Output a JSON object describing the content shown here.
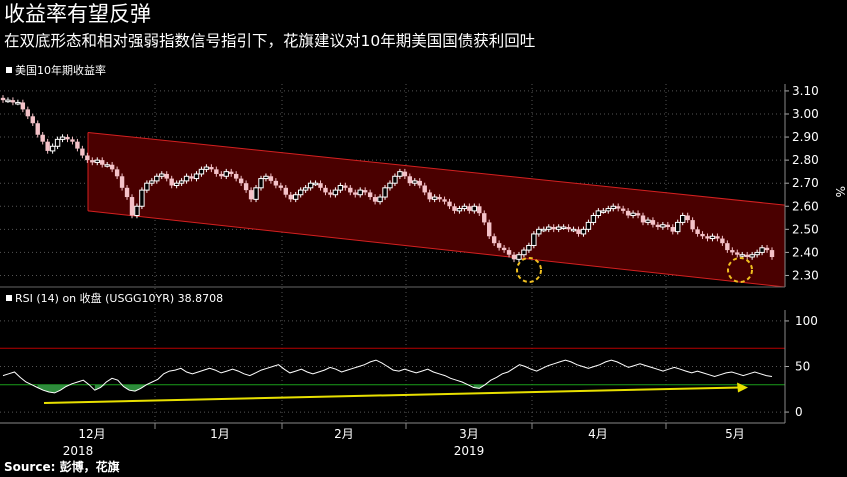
{
  "title": "收益率有望反弹",
  "subtitle": "在双底形态和相对强弱指数信号指引下，花旗建议对10年期美国国债获利回吐",
  "source": "Source: 彭博，花旗",
  "colors": {
    "background": "#000000",
    "channel_fill": "#4a0000",
    "channel_line": "#d42020",
    "candle_up": "#ffffff",
    "candle_down": "#f4c2c8",
    "rsi_line": "#ffffff",
    "rsi_oversold_fill": "#2e8b3c",
    "rsi_30_line": "#1a9e1a",
    "rsi_70_line": "#b80000",
    "trend_arrow": "#e8e000",
    "double_bottom_circle": "#f0c020"
  },
  "chart_data": [
    {
      "type": "candlestick",
      "title": "美国10年期收益率",
      "ylabel": "%",
      "ylim": [
        2.25,
        3.13
      ],
      "yticks": [
        2.3,
        2.4,
        2.5,
        2.6,
        2.7,
        2.8,
        2.9,
        3.0,
        3.1
      ],
      "ytick_labels": [
        "2.30",
        "2.40",
        "2.50",
        "2.60",
        "2.70",
        "2.80",
        "2.90",
        "3.00",
        "3.10"
      ],
      "x_month_labels": [
        "12月",
        "1月",
        "2月",
        "3月",
        "4月",
        "5月"
      ],
      "x_year_labels": [
        "2018",
        "2019"
      ],
      "close": [
        3.06,
        3.06,
        3.05,
        3.05,
        3.02,
        2.99,
        2.96,
        2.91,
        2.88,
        2.84,
        2.86,
        2.89,
        2.9,
        2.89,
        2.88,
        2.85,
        2.82,
        2.8,
        2.79,
        2.8,
        2.78,
        2.78,
        2.76,
        2.73,
        2.68,
        2.64,
        2.56,
        2.6,
        2.67,
        2.7,
        2.71,
        2.73,
        2.74,
        2.72,
        2.69,
        2.7,
        2.71,
        2.73,
        2.72,
        2.74,
        2.76,
        2.77,
        2.76,
        2.74,
        2.73,
        2.75,
        2.74,
        2.72,
        2.7,
        2.67,
        2.63,
        2.68,
        2.72,
        2.73,
        2.71,
        2.69,
        2.68,
        2.65,
        2.63,
        2.65,
        2.67,
        2.68,
        2.7,
        2.7,
        2.68,
        2.66,
        2.65,
        2.67,
        2.69,
        2.68,
        2.66,
        2.65,
        2.67,
        2.66,
        2.64,
        2.62,
        2.64,
        2.68,
        2.7,
        2.73,
        2.75,
        2.73,
        2.7,
        2.71,
        2.69,
        2.66,
        2.63,
        2.64,
        2.63,
        2.62,
        2.6,
        2.58,
        2.59,
        2.6,
        2.58,
        2.6,
        2.57,
        2.53,
        2.47,
        2.44,
        2.42,
        2.41,
        2.39,
        2.37,
        2.39,
        2.41,
        2.43,
        2.48,
        2.5,
        2.5,
        2.51,
        2.5,
        2.51,
        2.51,
        2.5,
        2.5,
        2.48,
        2.5,
        2.53,
        2.56,
        2.58,
        2.58,
        2.59,
        2.6,
        2.59,
        2.58,
        2.56,
        2.57,
        2.56,
        2.53,
        2.54,
        2.52,
        2.51,
        2.52,
        2.51,
        2.49,
        2.53,
        2.56,
        2.54,
        2.5,
        2.48,
        2.47,
        2.46,
        2.47,
        2.46,
        2.44,
        2.41,
        2.4,
        2.39,
        2.39,
        2.38,
        2.39,
        2.4,
        2.42,
        2.41,
        2.38
      ],
      "annotations": [
        "双底形态 (黄色虚线圆圈)",
        "下降通道 (红色平行线)"
      ]
    },
    {
      "type": "line",
      "title": "RSI (14) on 收盘 (USGG10YR) 38.8708",
      "ylim": [
        -12,
        112
      ],
      "yticks": [
        0,
        50,
        100
      ],
      "ytick_labels": [
        "0",
        "50",
        "100"
      ],
      "reference_lines": [
        30,
        70
      ],
      "values": [
        40,
        42,
        44,
        38,
        33,
        30,
        27,
        24,
        22,
        21,
        24,
        28,
        31,
        33,
        35,
        30,
        24,
        27,
        33,
        37,
        35,
        28,
        24,
        23,
        26,
        30,
        33,
        36,
        42,
        45,
        46,
        48,
        44,
        42,
        44,
        46,
        48,
        46,
        43,
        45,
        47,
        45,
        42,
        40,
        43,
        46,
        48,
        50,
        52,
        47,
        43,
        45,
        47,
        44,
        42,
        44,
        46,
        49,
        47,
        44,
        46,
        48,
        50,
        52,
        55,
        57,
        54,
        50,
        46,
        45,
        47,
        45,
        43,
        45,
        47,
        44,
        42,
        40,
        37,
        35,
        33,
        30,
        27,
        26,
        30,
        35,
        38,
        42,
        44,
        48,
        52,
        50,
        47,
        45,
        48,
        51,
        53,
        55,
        57,
        55,
        52,
        50,
        48,
        50,
        52,
        55,
        57,
        55,
        52,
        49,
        51,
        53,
        51,
        49,
        47,
        45,
        47,
        49,
        47,
        45,
        43,
        45,
        43,
        41,
        39,
        41,
        43,
        44,
        42,
        40,
        42,
        44,
        42,
        40,
        39
      ],
      "trend_arrow": "RSI 低点抬升 (黄色箭头)"
    }
  ]
}
